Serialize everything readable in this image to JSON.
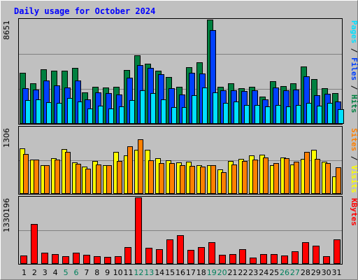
{
  "chart_data": {
    "type": "bar",
    "title": "Daily usage for October 2024",
    "categories": [
      "1",
      "2",
      "3",
      "4",
      "5",
      "6",
      "7",
      "8",
      "9",
      "10",
      "11",
      "12",
      "13",
      "14",
      "15",
      "16",
      "17",
      "18",
      "19",
      "20",
      "21",
      "22",
      "23",
      "24",
      "25",
      "26",
      "27",
      "28",
      "29",
      "30",
      "31"
    ],
    "weekend_days": [
      "5",
      "6",
      "12",
      "13",
      "19",
      "20",
      "26",
      "27"
    ],
    "panels": [
      {
        "id": "hits",
        "max_label": "8651",
        "ymax": 8651,
        "ylabel": "Pages / Files / Hits",
        "series": [
          {
            "name": "Hits",
            "color": "#008040",
            "values": [
              4230,
              3360,
              4520,
              4440,
              4400,
              4640,
              2590,
              3050,
              3020,
              3080,
              4480,
              5670,
              5020,
              4390,
              3870,
              3080,
              4730,
              5090,
              8651,
              3080,
              3360,
              2950,
              3080,
              2240,
              3540,
              3130,
              3360,
              4760,
              3690,
              2950,
              2540
            ]
          },
          {
            "name": "Files",
            "color": "#0040FF",
            "values": [
              2990,
              2860,
              3620,
              3170,
              3040,
              3590,
              2050,
              2590,
              2540,
              2450,
              3850,
              4880,
              4660,
              4120,
              2950,
              2450,
              4210,
              4180,
              7800,
              2760,
              2790,
              2700,
              2790,
              2050,
              3000,
              2790,
              2830,
              3950,
              2400,
              2520,
              1850
            ]
          },
          {
            "name": "Pages",
            "color": "#00E0FF",
            "values": [
              1990,
              2040,
              1780,
              1740,
              2130,
              1850,
              1260,
              1530,
              1290,
              1450,
              1970,
              2780,
              2560,
              2010,
              1380,
              1380,
              2360,
              3040,
              2640,
              1740,
              1880,
              1580,
              1550,
              1470,
              1580,
              1470,
              1550,
              1740,
              1490,
              1740,
              1230
            ]
          }
        ]
      },
      {
        "id": "visits",
        "max_label": "1306",
        "ymax": 1306,
        "ylabel": "Sites / Visits",
        "series": [
          {
            "name": "Visits",
            "color": "#FFFF00",
            "values": [
              890,
              680,
              570,
              700,
              880,
              620,
              540,
              640,
              570,
              830,
              760,
              860,
              870,
              700,
              660,
              620,
              630,
              560,
              570,
              480,
              650,
              690,
              751,
              770,
              560,
              720,
              580,
              690,
              870,
              630,
              350
            ]
          },
          {
            "name": "Sites",
            "color": "#FF8000",
            "values": [
              790,
              670,
              570,
              670,
              820,
              590,
              490,
              580,
              560,
              640,
              940,
              1070,
              660,
              610,
              600,
              570,
              550,
              540,
              560,
              420,
              580,
              640,
              680,
              710,
              600,
              700,
              630,
              820,
              690,
              600,
              520
            ]
          }
        ]
      },
      {
        "id": "kbytes",
        "max_label": "1330196",
        "ymax": 1330196,
        "ylabel": "KBytes",
        "series": [
          {
            "name": "KBytes",
            "color": "#FF0000",
            "values": [
              170000,
              800000,
              230000,
              200000,
              150000,
              230000,
              180000,
              150000,
              140000,
              150000,
              330000,
              1330196,
              320000,
              290000,
              490000,
              570000,
              280000,
              340000,
              430000,
              180000,
              190000,
              290000,
              130000,
              200000,
              200000,
              170000,
              250000,
              430000,
              360000,
              150000,
              490000
            ]
          }
        ]
      }
    ]
  }
}
